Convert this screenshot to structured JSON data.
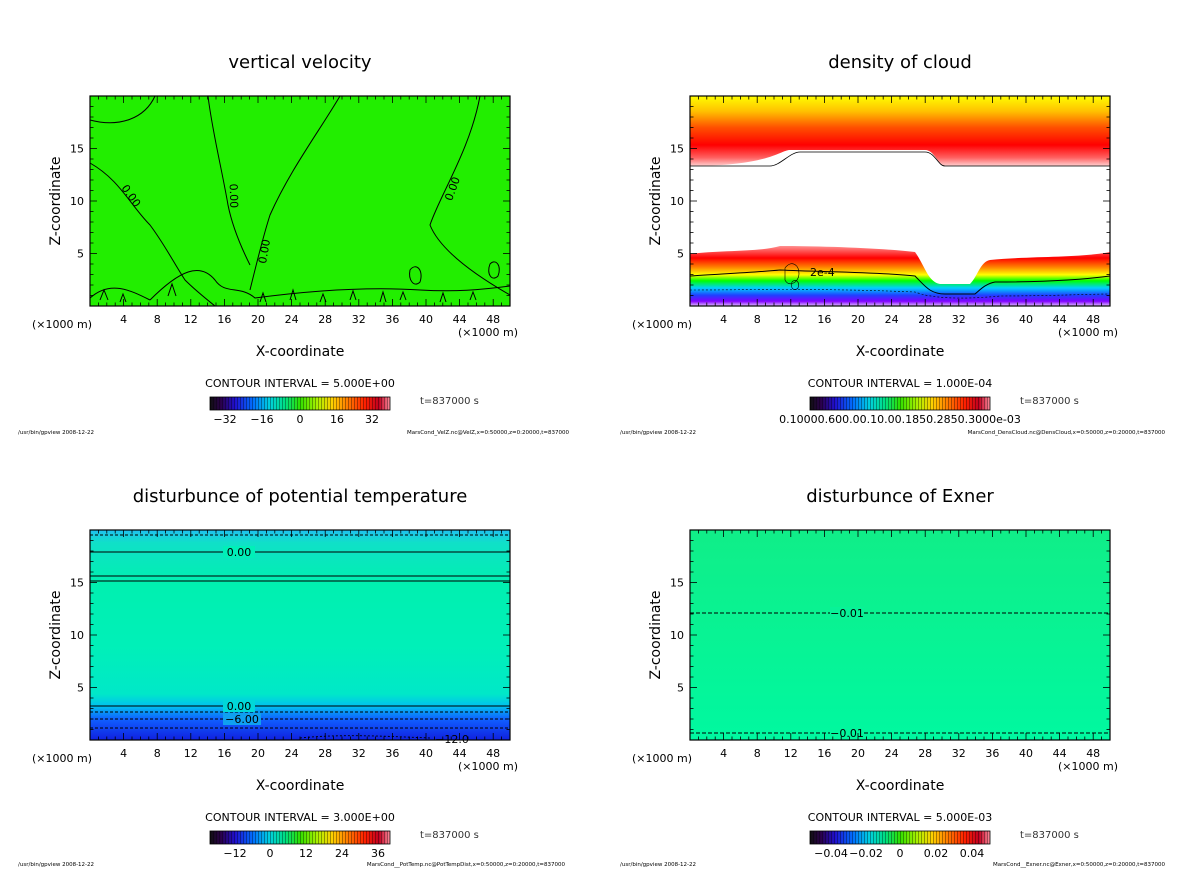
{
  "panels": [
    {
      "key": "velz",
      "title": "vertical velocity",
      "xlabel": "X-coordinate",
      "ylabel": "Z-coordinate",
      "unit_x_left": "(×1000 m)",
      "unit_x_right": "(×1000 m)",
      "contour_interval": "CONTOUR INTERVAL = 5.000E+00",
      "time": "t=837000 s",
      "colorbar_ticks": [
        "−32",
        "−16",
        "0",
        "16",
        "32"
      ],
      "footer_left": "/usr/bin/gpview  2008-12-22",
      "footer_right": "MarsCond_VelZ.nc@VelZ,x=0:50000,z=0:20000,t=837000",
      "contour_labels": [
        "0.00",
        "0.00",
        "0.00",
        "0.00"
      ]
    },
    {
      "key": "cloud",
      "title": "density of cloud",
      "xlabel": "X-coordinate",
      "ylabel": "Z-coordinate",
      "unit_x_left": "(×1000 m)",
      "unit_x_right": "(×1000 m)",
      "contour_interval": "CONTOUR INTERVAL = 1.000E-04",
      "time": "t=837000 s",
      "colorbar_ticks_text": "0.10000.600.00.10.00.1850.2850.3000e-03",
      "footer_left": "/usr/bin/gpview  2008-12-22",
      "footer_right": "MarsCond_DensCloud.nc@DensCloud,x=0:50000,z=0:20000,t=837000",
      "contour_labels": [
        "2e-4"
      ]
    },
    {
      "key": "pot",
      "title": "disturbunce of potential temperature",
      "xlabel": "X-coordinate",
      "ylabel": "Z-coordinate",
      "unit_x_left": "(×1000 m)",
      "unit_x_right": "(×1000 m)",
      "contour_interval": "CONTOUR INTERVAL = 3.000E+00",
      "time": "t=837000 s",
      "colorbar_ticks": [
        "−12",
        "0",
        "12",
        "24",
        "36"
      ],
      "footer_left": "/usr/bin/gpview  2008-12-22",
      "footer_right": "MarsCond__PotTemp.nc@PotTempDist,x=0:50000,z=0:20000,t=837000",
      "contour_labels": [
        "0.00",
        "0.00",
        "−6.00",
        "−12.0"
      ]
    },
    {
      "key": "exner",
      "title": "disturbunce of Exner",
      "xlabel": "X-coordinate",
      "ylabel": "Z-coordinate",
      "unit_x_left": "(×1000 m)",
      "unit_x_right": "(×1000 m)",
      "contour_interval": "CONTOUR INTERVAL = 5.000E-03",
      "time": "t=837000 s",
      "colorbar_ticks": [
        "−0.04",
        "−0.02",
        "0",
        "0.02",
        "0.04"
      ],
      "footer_left": "/usr/bin/gpview  2008-12-22",
      "footer_right": "MarsCond__Exner.nc@Exner,x=0:50000,z=0:20000,t=837000",
      "contour_labels": [
        "−0.01",
        "−0.01"
      ]
    }
  ],
  "chart_data": [
    {
      "type": "heatmap",
      "title": "vertical velocity",
      "xlabel": "X-coordinate",
      "ylabel": "Z-coordinate",
      "x_unit": "(×1000 m)",
      "xlim": [
        0,
        50
      ],
      "ylim": [
        0,
        20
      ],
      "x_ticks": [
        4,
        8,
        12,
        16,
        20,
        24,
        28,
        32,
        36,
        40,
        44,
        48
      ],
      "y_ticks": [
        5,
        10,
        15
      ],
      "colorbar_ticks": [
        -32,
        -16,
        0,
        16,
        32
      ],
      "contour_interval": 5.0,
      "contour_levels_labeled": [
        0.0,
        0.0,
        0.0,
        0.0
      ],
      "time_s": 837000,
      "colors": {
        "field": "#22ee00"
      }
    },
    {
      "type": "heatmap",
      "title": "density of cloud",
      "xlabel": "X-coordinate",
      "ylabel": "Z-coordinate",
      "x_unit": "(×1000 m)",
      "xlim": [
        0,
        50
      ],
      "ylim": [
        0,
        20
      ],
      "x_ticks": [
        4,
        8,
        12,
        16,
        20,
        24,
        28,
        32,
        36,
        40,
        44,
        48
      ],
      "y_ticks": [
        5,
        10,
        15
      ],
      "contour_interval": 0.0001,
      "contour_levels_labeled": [
        0.0002
      ],
      "upper_layer_base_z": [
        13.5,
        13.5,
        13.5,
        14.0,
        14.5,
        14.8,
        14.8,
        13.5,
        13.5,
        13.5
      ],
      "lower_layer_top_z": [
        5.0,
        5.0,
        5.5,
        5.5,
        5.5,
        5.3,
        3.0,
        2.0,
        4.5,
        5.0
      ],
      "time_s": 837000
    },
    {
      "type": "heatmap",
      "title": "disturbunce of potential temperature",
      "xlabel": "X-coordinate",
      "ylabel": "Z-coordinate",
      "x_unit": "(×1000 m)",
      "xlim": [
        0,
        50
      ],
      "ylim": [
        0,
        20
      ],
      "x_ticks": [
        4,
        8,
        12,
        16,
        20,
        24,
        28,
        32,
        36,
        40,
        44,
        48
      ],
      "y_ticks": [
        5,
        10,
        15
      ],
      "colorbar_ticks": [
        -12,
        0,
        12,
        24,
        36
      ],
      "contour_interval": 3.0,
      "contour_levels_labeled": [
        0.0,
        0.0,
        -6.0,
        -12.0
      ],
      "contour_z": [
        17.8,
        15.5,
        15.0,
        3.3,
        2.0
      ],
      "time_s": 837000
    },
    {
      "type": "heatmap",
      "title": "disturbunce of Exner",
      "xlabel": "X-coordinate",
      "ylabel": "Z-coordinate",
      "x_unit": "(×1000 m)",
      "xlim": [
        0,
        50
      ],
      "ylim": [
        0,
        20
      ],
      "x_ticks": [
        4,
        8,
        12,
        16,
        20,
        24,
        28,
        32,
        36,
        40,
        44,
        48
      ],
      "y_ticks": [
        5,
        10,
        15
      ],
      "colorbar_ticks": [
        -0.04,
        -0.02,
        0,
        0.02,
        0.04
      ],
      "contour_interval": 0.005,
      "contour_levels_labeled": [
        -0.01,
        -0.01
      ],
      "contour_z": [
        12.0,
        0.8
      ],
      "time_s": 837000
    }
  ]
}
